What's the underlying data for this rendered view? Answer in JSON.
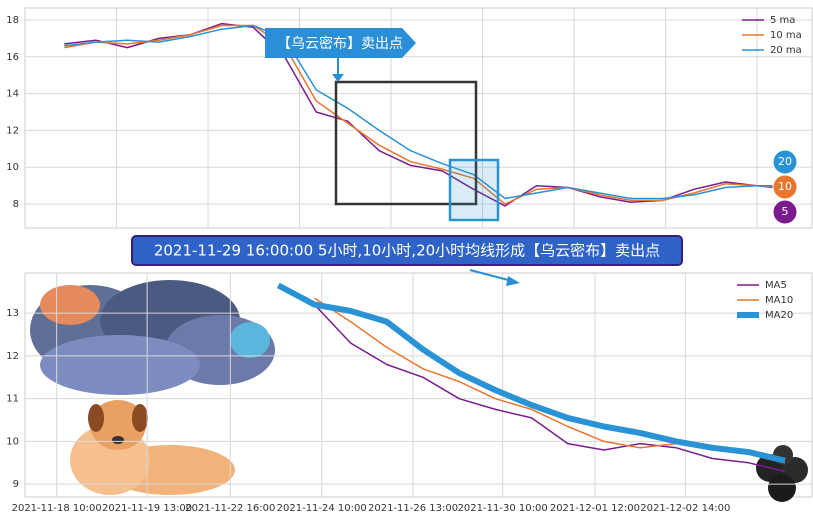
{
  "chart_data": [
    {
      "type": "line",
      "grid": true,
      "legend": "upper right",
      "xlim": [
        0,
        100
      ],
      "ylim": [
        6.7,
        18.65
      ],
      "yticks": [
        8,
        10,
        12,
        14,
        16,
        18
      ],
      "x": [
        5,
        9,
        13,
        17,
        21,
        25,
        29,
        33,
        37,
        41,
        45,
        49,
        53,
        57,
        61,
        65,
        69,
        73,
        77,
        81,
        85,
        89,
        93,
        97
      ],
      "series": [
        {
          "name": "5 ma",
          "color": "#7b1c8e",
          "values": [
            16.7,
            16.9,
            16.5,
            17.0,
            17.2,
            17.8,
            17.6,
            16.0,
            13.0,
            12.5,
            10.9,
            10.1,
            9.8,
            8.8,
            7.9,
            9.0,
            8.9,
            8.4,
            8.1,
            8.2,
            8.8,
            9.2,
            9.0,
            8.8
          ]
        },
        {
          "name": "10 ma",
          "color": "#e8772e",
          "values": [
            16.5,
            16.8,
            16.7,
            16.9,
            17.2,
            17.7,
            17.7,
            16.6,
            13.6,
            12.4,
            11.2,
            10.3,
            9.9,
            9.4,
            8.0,
            8.8,
            8.9,
            8.5,
            8.2,
            8.2,
            8.6,
            9.1,
            9.0,
            8.9
          ]
        },
        {
          "name": "20 ma",
          "color": "#2a93d5",
          "values": [
            16.6,
            16.8,
            16.9,
            16.8,
            17.1,
            17.5,
            17.7,
            17.0,
            14.2,
            13.2,
            12.0,
            10.9,
            10.2,
            9.6,
            8.3,
            8.6,
            8.9,
            8.6,
            8.3,
            8.3,
            8.5,
            8.9,
            9.0,
            9.0
          ]
        }
      ],
      "callout": "【乌云密布】卖出点",
      "badges": [
        "20",
        "10",
        "5"
      ]
    },
    {
      "type": "line",
      "grid": true,
      "legend": "upper right",
      "title": "2021-11-29 16:00:00 5小时,10小时,20小时均线形成【乌云密布】卖出点",
      "xlim": [
        0,
        87
      ],
      "ylim": [
        8.7,
        13.94
      ],
      "yticks": [
        9,
        10,
        11,
        12,
        13
      ],
      "xticks": [
        {
          "value": 3.5,
          "label": "2021-11-18 10:00"
        },
        {
          "value": 13.5,
          "label": "2021-11-19 13:00"
        },
        {
          "value": 22.7,
          "label": "2021-11-22 16:00"
        },
        {
          "value": 32.8,
          "label": "2021-11-24 10:00"
        },
        {
          "value": 42.9,
          "label": "2021-11-26 13:00"
        },
        {
          "value": 52.8,
          "label": "2021-11-30 10:00"
        },
        {
          "value": 63.0,
          "label": "2021-12-01 12:00"
        },
        {
          "value": 73.0,
          "label": "2021-12-02 14:00"
        }
      ],
      "x": [
        28,
        32,
        36,
        40,
        44,
        48,
        52,
        56,
        60,
        64,
        68,
        72,
        76,
        80,
        84
      ],
      "series": [
        {
          "name": "MA5",
          "color": "#7b1c8e",
          "values": [
            null,
            13.2,
            12.3,
            11.8,
            11.5,
            11.0,
            10.75,
            10.55,
            9.95,
            9.8,
            9.95,
            9.85,
            9.6,
            9.5,
            9.3
          ]
        },
        {
          "name": "MA10",
          "color": "#e8772e",
          "values": [
            null,
            13.35,
            12.8,
            12.2,
            11.7,
            11.4,
            11.0,
            10.75,
            10.35,
            10.0,
            9.85,
            9.95,
            9.8,
            9.75,
            9.5
          ]
        },
        {
          "name": "MA20",
          "color": "#2a93d5",
          "values": [
            13.65,
            13.2,
            13.05,
            12.8,
            12.15,
            11.6,
            11.2,
            10.85,
            10.55,
            10.35,
            10.2,
            10.0,
            9.85,
            9.75,
            9.55
          ]
        }
      ]
    }
  ]
}
